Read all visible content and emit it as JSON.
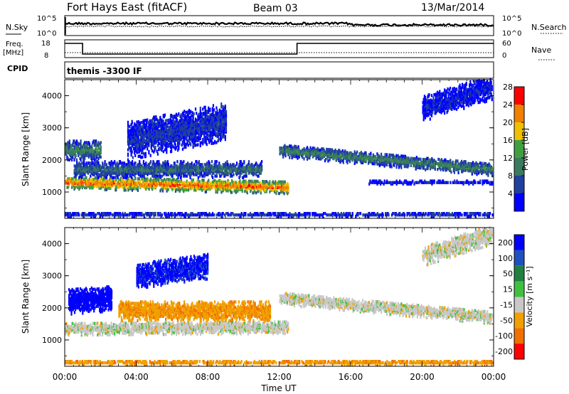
{
  "header": {
    "station": "Fort Hays East (fitACF)",
    "beam": "Beam 03",
    "date": "13/Mar/2014"
  },
  "control": {
    "nsky_label": "N.Sky",
    "nsearch_label": "N.Search",
    "freq_label_1": "Freq.",
    "freq_label_2": "[MHz]",
    "nave_label": "Nave",
    "cpid_label": "CPID",
    "cpid_value": "themis -3300 IF",
    "noise_ticks": [
      "10^5",
      "10^0"
    ],
    "freq_ticks": [
      "18",
      "8"
    ],
    "nave_ticks": [
      "60",
      "0"
    ]
  },
  "colors": {
    "frame": "#000000",
    "power_scale": [
      "#0000ff",
      "#2040a0",
      "#3a7a60",
      "#40a040",
      "#f0c000",
      "#f08000",
      "#ff0000"
    ],
    "velocity_scale": [
      "#0000ff",
      "#2050c0",
      "#208040",
      "#40c040",
      "#c8c8c8",
      "#f0a000",
      "#f07000",
      "#ff0000"
    ]
  },
  "chart_data": [
    {
      "type": "heatmap",
      "name": "power-panel",
      "ylabel": "Slant Range [km]",
      "xlabel": "Time UT",
      "yticks": [
        "1000",
        "2000",
        "3000",
        "4000"
      ],
      "xticks": [
        "00:00",
        "04:00",
        "08:00",
        "12:00",
        "16:00",
        "20:00",
        "00:00"
      ],
      "xlim_hours": [
        0,
        24
      ],
      "ylim_km": [
        180,
        4500
      ],
      "colorbar_label": "Power [dB]",
      "colorbar_ticks": [
        "4",
        "8",
        "12",
        "16",
        "20",
        "24",
        "28"
      ],
      "colorbar_range": [
        0,
        30
      ]
    },
    {
      "type": "heatmap",
      "name": "velocity-panel",
      "ylabel": "Slant Range [km]",
      "xlabel": "Time UT",
      "yticks": [
        "1000",
        "2000",
        "3000",
        "4000"
      ],
      "xticks": [
        "00:00",
        "04:00",
        "08:00",
        "12:00",
        "16:00",
        "20:00",
        "00:00"
      ],
      "xlim_hours": [
        0,
        24
      ],
      "ylim_km": [
        180,
        4500
      ],
      "colorbar_label": "Velocity [m s⁻¹]",
      "colorbar_ticks": [
        "200",
        "100",
        "50",
        "15",
        "-15",
        "-50",
        "-100",
        "-200"
      ]
    }
  ],
  "bands": {
    "freq_mhz_segments": [
      [
        0,
        1,
        16
      ],
      [
        1,
        13,
        10
      ],
      [
        13,
        24,
        16
      ]
    ],
    "echo_bands_power": [
      {
        "t0": 0.0,
        "t1": 12.5,
        "r0": 1300,
        "r1": 1150,
        "half": 200,
        "peak": 26
      },
      {
        "t0": 0.5,
        "t1": 11.0,
        "r0": 1700,
        "r1": 1700,
        "half": 250,
        "peak": 10
      },
      {
        "t0": 3.5,
        "t1": 9.0,
        "r0": 2600,
        "r1": 3200,
        "half": 600,
        "peak": 6
      },
      {
        "t0": 0.0,
        "t1": 2.0,
        "r0": 2300,
        "r1": 2300,
        "half": 300,
        "peak": 12
      },
      {
        "t0": 12.0,
        "t1": 24.0,
        "r0": 2300,
        "r1": 1700,
        "half": 200,
        "peak": 12
      },
      {
        "t0": 20.0,
        "t1": 24.0,
        "r0": 3600,
        "r1": 4300,
        "half": 400,
        "peak": 4
      },
      {
        "t0": 17.0,
        "t1": 24.0,
        "r0": 1300,
        "r1": 1300,
        "half": 50,
        "peak": 4
      },
      {
        "t0": 0.0,
        "t1": 24.0,
        "r0": 300,
        "r1": 300,
        "half": 60,
        "peak": 6
      }
    ],
    "echo_bands_velocity": [
      {
        "t0": 0.0,
        "t1": 12.5,
        "r0": 1350,
        "r1": 1400,
        "half": 200,
        "peak": 0
      },
      {
        "t0": 0.2,
        "t1": 2.6,
        "r0": 2200,
        "r1": 2300,
        "half": 400,
        "peak": 180
      },
      {
        "t0": 4.0,
        "t1": 8.0,
        "r0": 3000,
        "r1": 3300,
        "half": 400,
        "peak": 160
      },
      {
        "t0": 12.0,
        "t1": 24.0,
        "r0": 2300,
        "r1": 1700,
        "half": 200,
        "peak": 0
      },
      {
        "t0": 20.0,
        "t1": 24.0,
        "r0": 3600,
        "r1": 4300,
        "half": 300,
        "peak": 0
      },
      {
        "t0": 0.0,
        "t1": 24.0,
        "r0": 300,
        "r1": 300,
        "half": 60,
        "peak": -40
      },
      {
        "t0": 3.0,
        "t1": 11.5,
        "r0": 1900,
        "r1": 1900,
        "half": 300,
        "peak": -40
      }
    ]
  }
}
